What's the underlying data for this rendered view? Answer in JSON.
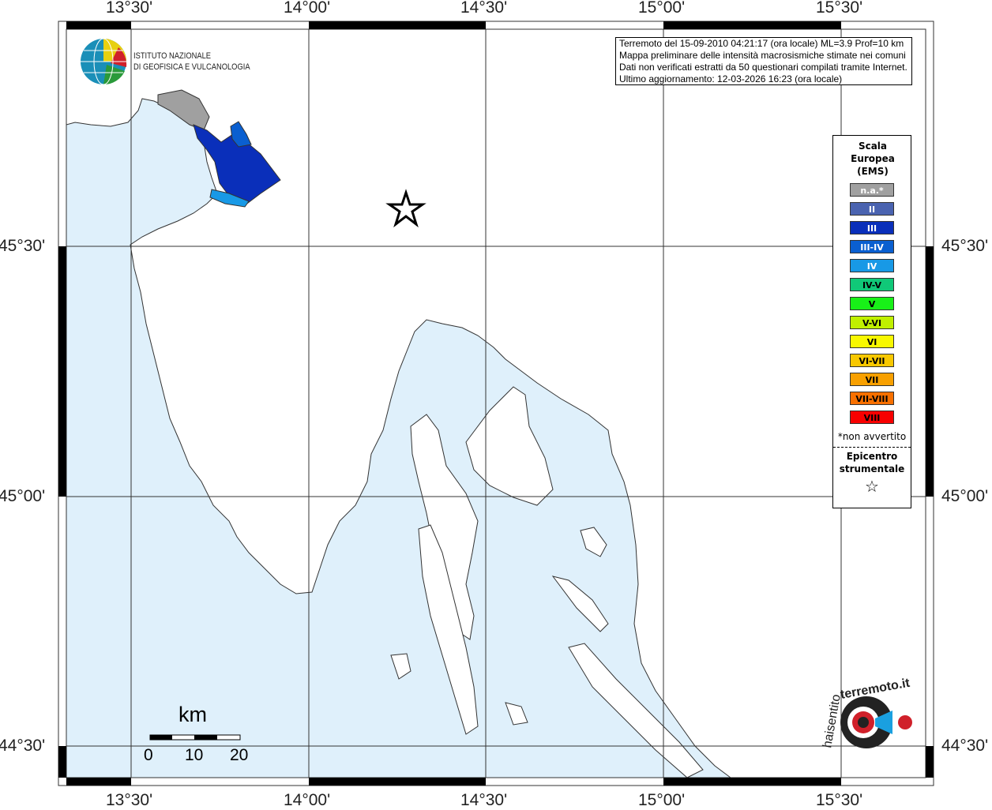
{
  "info": {
    "line1": "Terremoto del 15-09-2010 04:21:17 (ora locale) ML=3.9 Prof=10 km",
    "line2": "Mappa preliminare delle intensità macrosismiche stimate nei comuni",
    "line3": "Dati non verificati estratti da 50 questionari compilati tramite Internet.",
    "line4": "Ultimo aggiornamento: 12-03-2026 16:23 (ora locale)"
  },
  "institute": {
    "line1": "ISTITUTO NAZIONALE",
    "line2": "DI GEOFISICA E VULCANOLOGIA"
  },
  "lon_ticks": [
    "13°30'",
    "14°00'",
    "14°30'",
    "15°00'",
    "15°30'"
  ],
  "lat_ticks": [
    "45°30'",
    "45°00'",
    "44°30'"
  ],
  "legend": {
    "title": "Scala Europea (EMS)",
    "items": [
      {
        "label": "n.a.*",
        "color": "#a0a0a0",
        "text": "#ffffff"
      },
      {
        "label": "II",
        "color": "#4a63b0",
        "text": "#ffffff"
      },
      {
        "label": "III",
        "color": "#0a2fba",
        "text": "#ffffff"
      },
      {
        "label": "III-IV",
        "color": "#0a5fd0",
        "text": "#ffffff"
      },
      {
        "label": "IV",
        "color": "#1899e6",
        "text": "#ffffff"
      },
      {
        "label": "IV-V",
        "color": "#10c878",
        "text": "#000000"
      },
      {
        "label": "V",
        "color": "#18f018",
        "text": "#000000"
      },
      {
        "label": "V-VI",
        "color": "#c0f000",
        "text": "#000000"
      },
      {
        "label": "VI",
        "color": "#f8f800",
        "text": "#000000"
      },
      {
        "label": "VI-VII",
        "color": "#f8c800",
        "text": "#000000"
      },
      {
        "label": "VII",
        "color": "#f8a000",
        "text": "#000000"
      },
      {
        "label": "VII-VIII",
        "color": "#f87000",
        "text": "#000000"
      },
      {
        "label": "VIII",
        "color": "#f80000",
        "text": "#000000"
      }
    ],
    "note": "*non avvertito",
    "epicenter_label": "Epicentro strumentale",
    "epicenter_icon": "star-outline-icon"
  },
  "scale": {
    "unit": "km",
    "labels": [
      "0",
      "10",
      "20"
    ]
  },
  "colors": {
    "sea": "#dff0fb",
    "land": "#ffffff"
  }
}
